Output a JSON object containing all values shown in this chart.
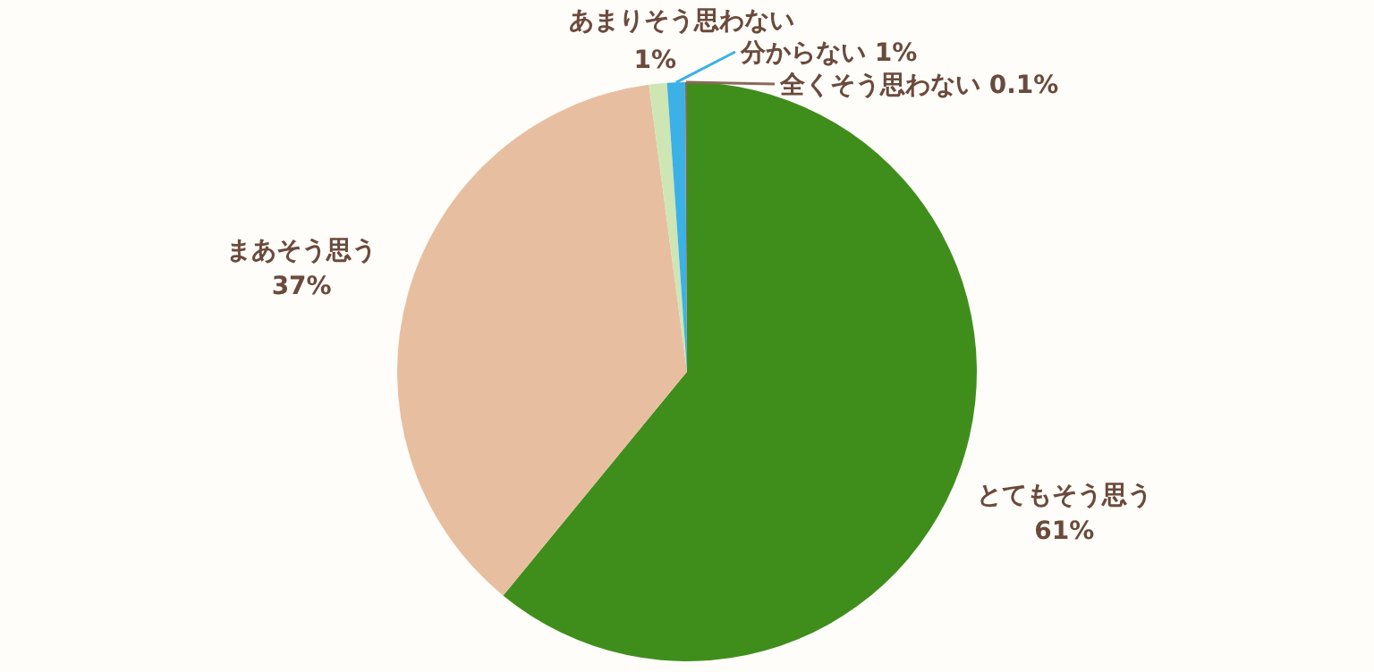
{
  "chart_data": {
    "type": "pie",
    "categories": [
      "とてもそう思う",
      "まあそう思う",
      "あまりそう思わない",
      "分からない",
      "全くそう思わない"
    ],
    "values": [
      61,
      37,
      1,
      1,
      0.1
    ],
    "colors": [
      "#3f8e1c",
      "#e8bea1",
      "#cde6b4",
      "#3cb1e6",
      "#8a6a5a"
    ],
    "value_labels": [
      "61%",
      "37%",
      "1%",
      "1%",
      "0.1%"
    ]
  }
}
